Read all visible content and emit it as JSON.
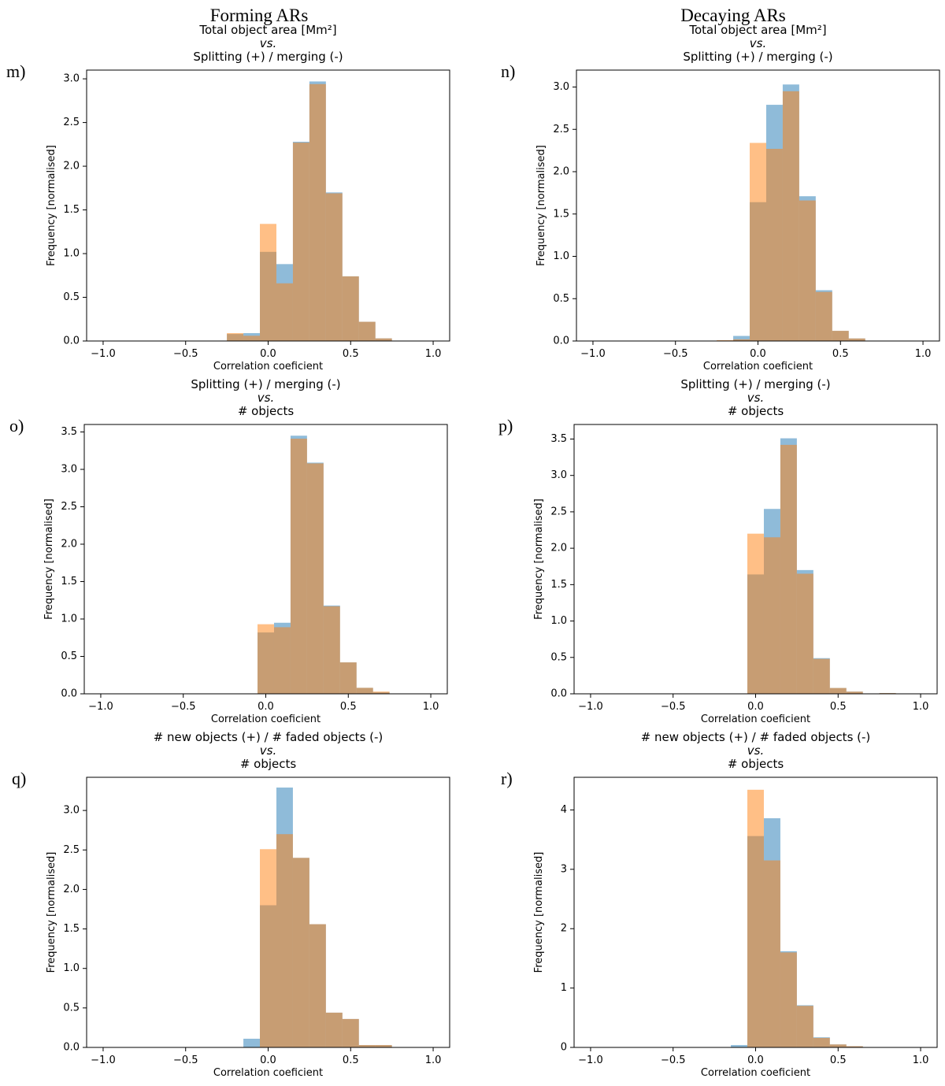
{
  "columns": [
    {
      "title": "Forming ARs"
    },
    {
      "title": "Decaying ARs"
    }
  ],
  "colors": {
    "blue": "#1f77b4",
    "orange": "#ff7f0e",
    "axis": "#000000"
  },
  "chart_data": [
    {
      "panel_label": "m)",
      "type": "bar",
      "title_lines": [
        "Total object area [Mm²]",
        "vs.",
        "Splitting (+) / merging (-)"
      ],
      "xlabel": "Correlation coeficient",
      "ylabel": "Frequency [normalised]",
      "xlim": [
        -1.1,
        1.1
      ],
      "ylim": [
        0,
        3.1
      ],
      "xticks": [
        -1.0,
        -0.5,
        0.0,
        0.5,
        1.0
      ],
      "xtick_labels": [
        "−1.0",
        "−0.5",
        "0.0",
        "0.5",
        "1.0"
      ],
      "yticks": [
        0.0,
        0.5,
        1.0,
        1.5,
        2.0,
        2.5,
        3.0
      ],
      "ytick_labels": [
        "0.0",
        "0.5",
        "1.0",
        "1.5",
        "2.0",
        "2.5",
        "3.0"
      ],
      "bin_edges": [
        -0.25,
        -0.15,
        -0.05,
        0.05,
        0.15,
        0.25,
        0.35,
        0.45,
        0.55,
        0.65,
        0.75
      ],
      "series": [
        {
          "name": "blue",
          "values": [
            0.08,
            0.09,
            1.02,
            0.88,
            2.28,
            2.97,
            1.7,
            0.74,
            0.22,
            0.03
          ]
        },
        {
          "name": "orange",
          "values": [
            0.09,
            0.06,
            1.34,
            0.66,
            2.27,
            2.94,
            1.69,
            0.74,
            0.22,
            0.03
          ]
        }
      ]
    },
    {
      "panel_label": "n)",
      "type": "bar",
      "title_lines": [
        "Total object area [Mm²]",
        "vs.",
        "Splitting (+) / merging (-)"
      ],
      "xlabel": "Correlation coeficient",
      "ylabel": "Frequency [normalised]",
      "xlim": [
        -1.1,
        1.1
      ],
      "ylim": [
        0,
        3.2
      ],
      "xticks": [
        -1.0,
        -0.5,
        0.0,
        0.5,
        1.0
      ],
      "xtick_labels": [
        "−1.0",
        "−0.5",
        "0.0",
        "0.5",
        "1.0"
      ],
      "yticks": [
        0.0,
        0.5,
        1.0,
        1.5,
        2.0,
        2.5,
        3.0
      ],
      "ytick_labels": [
        "0.0",
        "0.5",
        "1.0",
        "1.5",
        "2.0",
        "2.5",
        "3.0"
      ],
      "bin_edges": [
        -0.25,
        -0.15,
        -0.05,
        0.05,
        0.15,
        0.25,
        0.35,
        0.45,
        0.55,
        0.65,
        0.75
      ],
      "series": [
        {
          "name": "blue",
          "values": [
            0.0,
            0.06,
            1.64,
            2.79,
            3.03,
            1.71,
            0.6,
            0.12,
            0.03,
            0.0
          ]
        },
        {
          "name": "orange",
          "values": [
            0.01,
            0.02,
            2.34,
            2.27,
            2.95,
            1.66,
            0.58,
            0.12,
            0.03,
            0.0
          ]
        }
      ]
    },
    {
      "panel_label": "o)",
      "type": "bar",
      "title_lines": [
        "Splitting (+) / merging (-)",
        "vs.",
        "# objects"
      ],
      "xlabel": "Correlation coeficient",
      "ylabel": "Frequency [normalised]",
      "xlim": [
        -1.1,
        1.1
      ],
      "ylim": [
        0,
        3.6
      ],
      "xticks": [
        -1.0,
        -0.5,
        0.0,
        0.5,
        1.0
      ],
      "xtick_labels": [
        "−1.0",
        "−0.5",
        "0.0",
        "0.5",
        "1.0"
      ],
      "yticks": [
        0.0,
        0.5,
        1.0,
        1.5,
        2.0,
        2.5,
        3.0,
        3.5
      ],
      "ytick_labels": [
        "0.0",
        "0.5",
        "1.0",
        "1.5",
        "2.0",
        "2.5",
        "3.0",
        "3.5"
      ],
      "bin_edges": [
        -0.05,
        0.05,
        0.15,
        0.25,
        0.35,
        0.45,
        0.55,
        0.65,
        0.75
      ],
      "series": [
        {
          "name": "blue",
          "values": [
            0.82,
            0.95,
            3.45,
            3.09,
            1.18,
            0.42,
            0.08,
            0.02
          ]
        },
        {
          "name": "orange",
          "values": [
            0.93,
            0.89,
            3.41,
            3.08,
            1.17,
            0.42,
            0.08,
            0.03
          ]
        }
      ]
    },
    {
      "panel_label": "p)",
      "type": "bar",
      "title_lines": [
        "Splitting (+) / merging (-)",
        "vs.",
        "# objects"
      ],
      "xlabel": "Correlation coeficient",
      "ylabel": "Frequency [normalised]",
      "xlim": [
        -1.1,
        1.1
      ],
      "ylim": [
        0,
        3.7
      ],
      "xticks": [
        -1.0,
        -0.5,
        0.0,
        0.5,
        1.0
      ],
      "xtick_labels": [
        "−1.0",
        "−0.5",
        "0.0",
        "0.5",
        "1.0"
      ],
      "yticks": [
        0.0,
        0.5,
        1.0,
        1.5,
        2.0,
        2.5,
        3.0,
        3.5
      ],
      "ytick_labels": [
        "0.0",
        "0.5",
        "1.0",
        "1.5",
        "2.0",
        "2.5",
        "3.0",
        "3.5"
      ],
      "bin_edges": [
        -0.05,
        0.05,
        0.15,
        0.25,
        0.35,
        0.45,
        0.55,
        0.65,
        0.75,
        0.85,
        0.95
      ],
      "series": [
        {
          "name": "blue",
          "values": [
            1.64,
            2.54,
            3.51,
            1.7,
            0.49,
            0.08,
            0.03,
            0.0,
            0.01,
            0.0
          ]
        },
        {
          "name": "orange",
          "values": [
            2.2,
            2.15,
            3.42,
            1.65,
            0.48,
            0.08,
            0.03,
            0.0,
            0.01,
            0.0
          ]
        }
      ]
    },
    {
      "panel_label": "q)",
      "type": "bar",
      "title_lines": [
        "# new objects (+) / # faded objects (-)",
        "vs.",
        "# objects"
      ],
      "xlabel": "Correlation coeficient",
      "ylabel": "Frequency [normalised]",
      "xlim": [
        -1.1,
        1.1
      ],
      "ylim": [
        0,
        3.42
      ],
      "xticks": [
        -1.0,
        -0.5,
        0.0,
        0.5,
        1.0
      ],
      "xtick_labels": [
        "−1.0",
        "−0.5",
        "0.0",
        "0.5",
        "1.0"
      ],
      "yticks": [
        0.0,
        0.5,
        1.0,
        1.5,
        2.0,
        2.5,
        3.0
      ],
      "ytick_labels": [
        "0.0",
        "0.5",
        "1.0",
        "1.5",
        "2.0",
        "2.5",
        "3.0"
      ],
      "bin_edges": [
        -0.15,
        -0.05,
        0.05,
        0.15,
        0.25,
        0.35,
        0.45,
        0.55,
        0.65,
        0.75
      ],
      "series": [
        {
          "name": "blue",
          "values": [
            0.11,
            1.8,
            3.29,
            2.4,
            1.56,
            0.44,
            0.36,
            0.03,
            0.03
          ]
        },
        {
          "name": "orange",
          "values": [
            0.0,
            2.51,
            2.7,
            2.4,
            1.56,
            0.44,
            0.36,
            0.03,
            0.03
          ]
        }
      ]
    },
    {
      "panel_label": "r)",
      "type": "bar",
      "title_lines": [
        "# new objects (+) / # faded objects (-)",
        "vs.",
        "# objects"
      ],
      "xlabel": "Correlation coeficient",
      "ylabel": "Frequency [normalised]",
      "xlim": [
        -1.1,
        1.1
      ],
      "ylim": [
        0,
        4.55
      ],
      "xticks": [
        -1.0,
        -0.5,
        0.0,
        0.5,
        1.0
      ],
      "xtick_labels": [
        "−1.0",
        "−0.5",
        "0.0",
        "0.5",
        "1.0"
      ],
      "yticks": [
        0,
        1,
        2,
        3,
        4
      ],
      "ytick_labels": [
        "0",
        "1",
        "2",
        "3",
        "4"
      ],
      "bin_edges": [
        -0.15,
        -0.05,
        0.05,
        0.15,
        0.25,
        0.35,
        0.45,
        0.55,
        0.65
      ],
      "series": [
        {
          "name": "blue",
          "values": [
            0.04,
            3.56,
            3.86,
            1.62,
            0.71,
            0.17,
            0.05,
            0.02
          ]
        },
        {
          "name": "orange",
          "values": [
            0.0,
            4.34,
            3.15,
            1.6,
            0.7,
            0.16,
            0.05,
            0.02
          ]
        }
      ]
    }
  ]
}
